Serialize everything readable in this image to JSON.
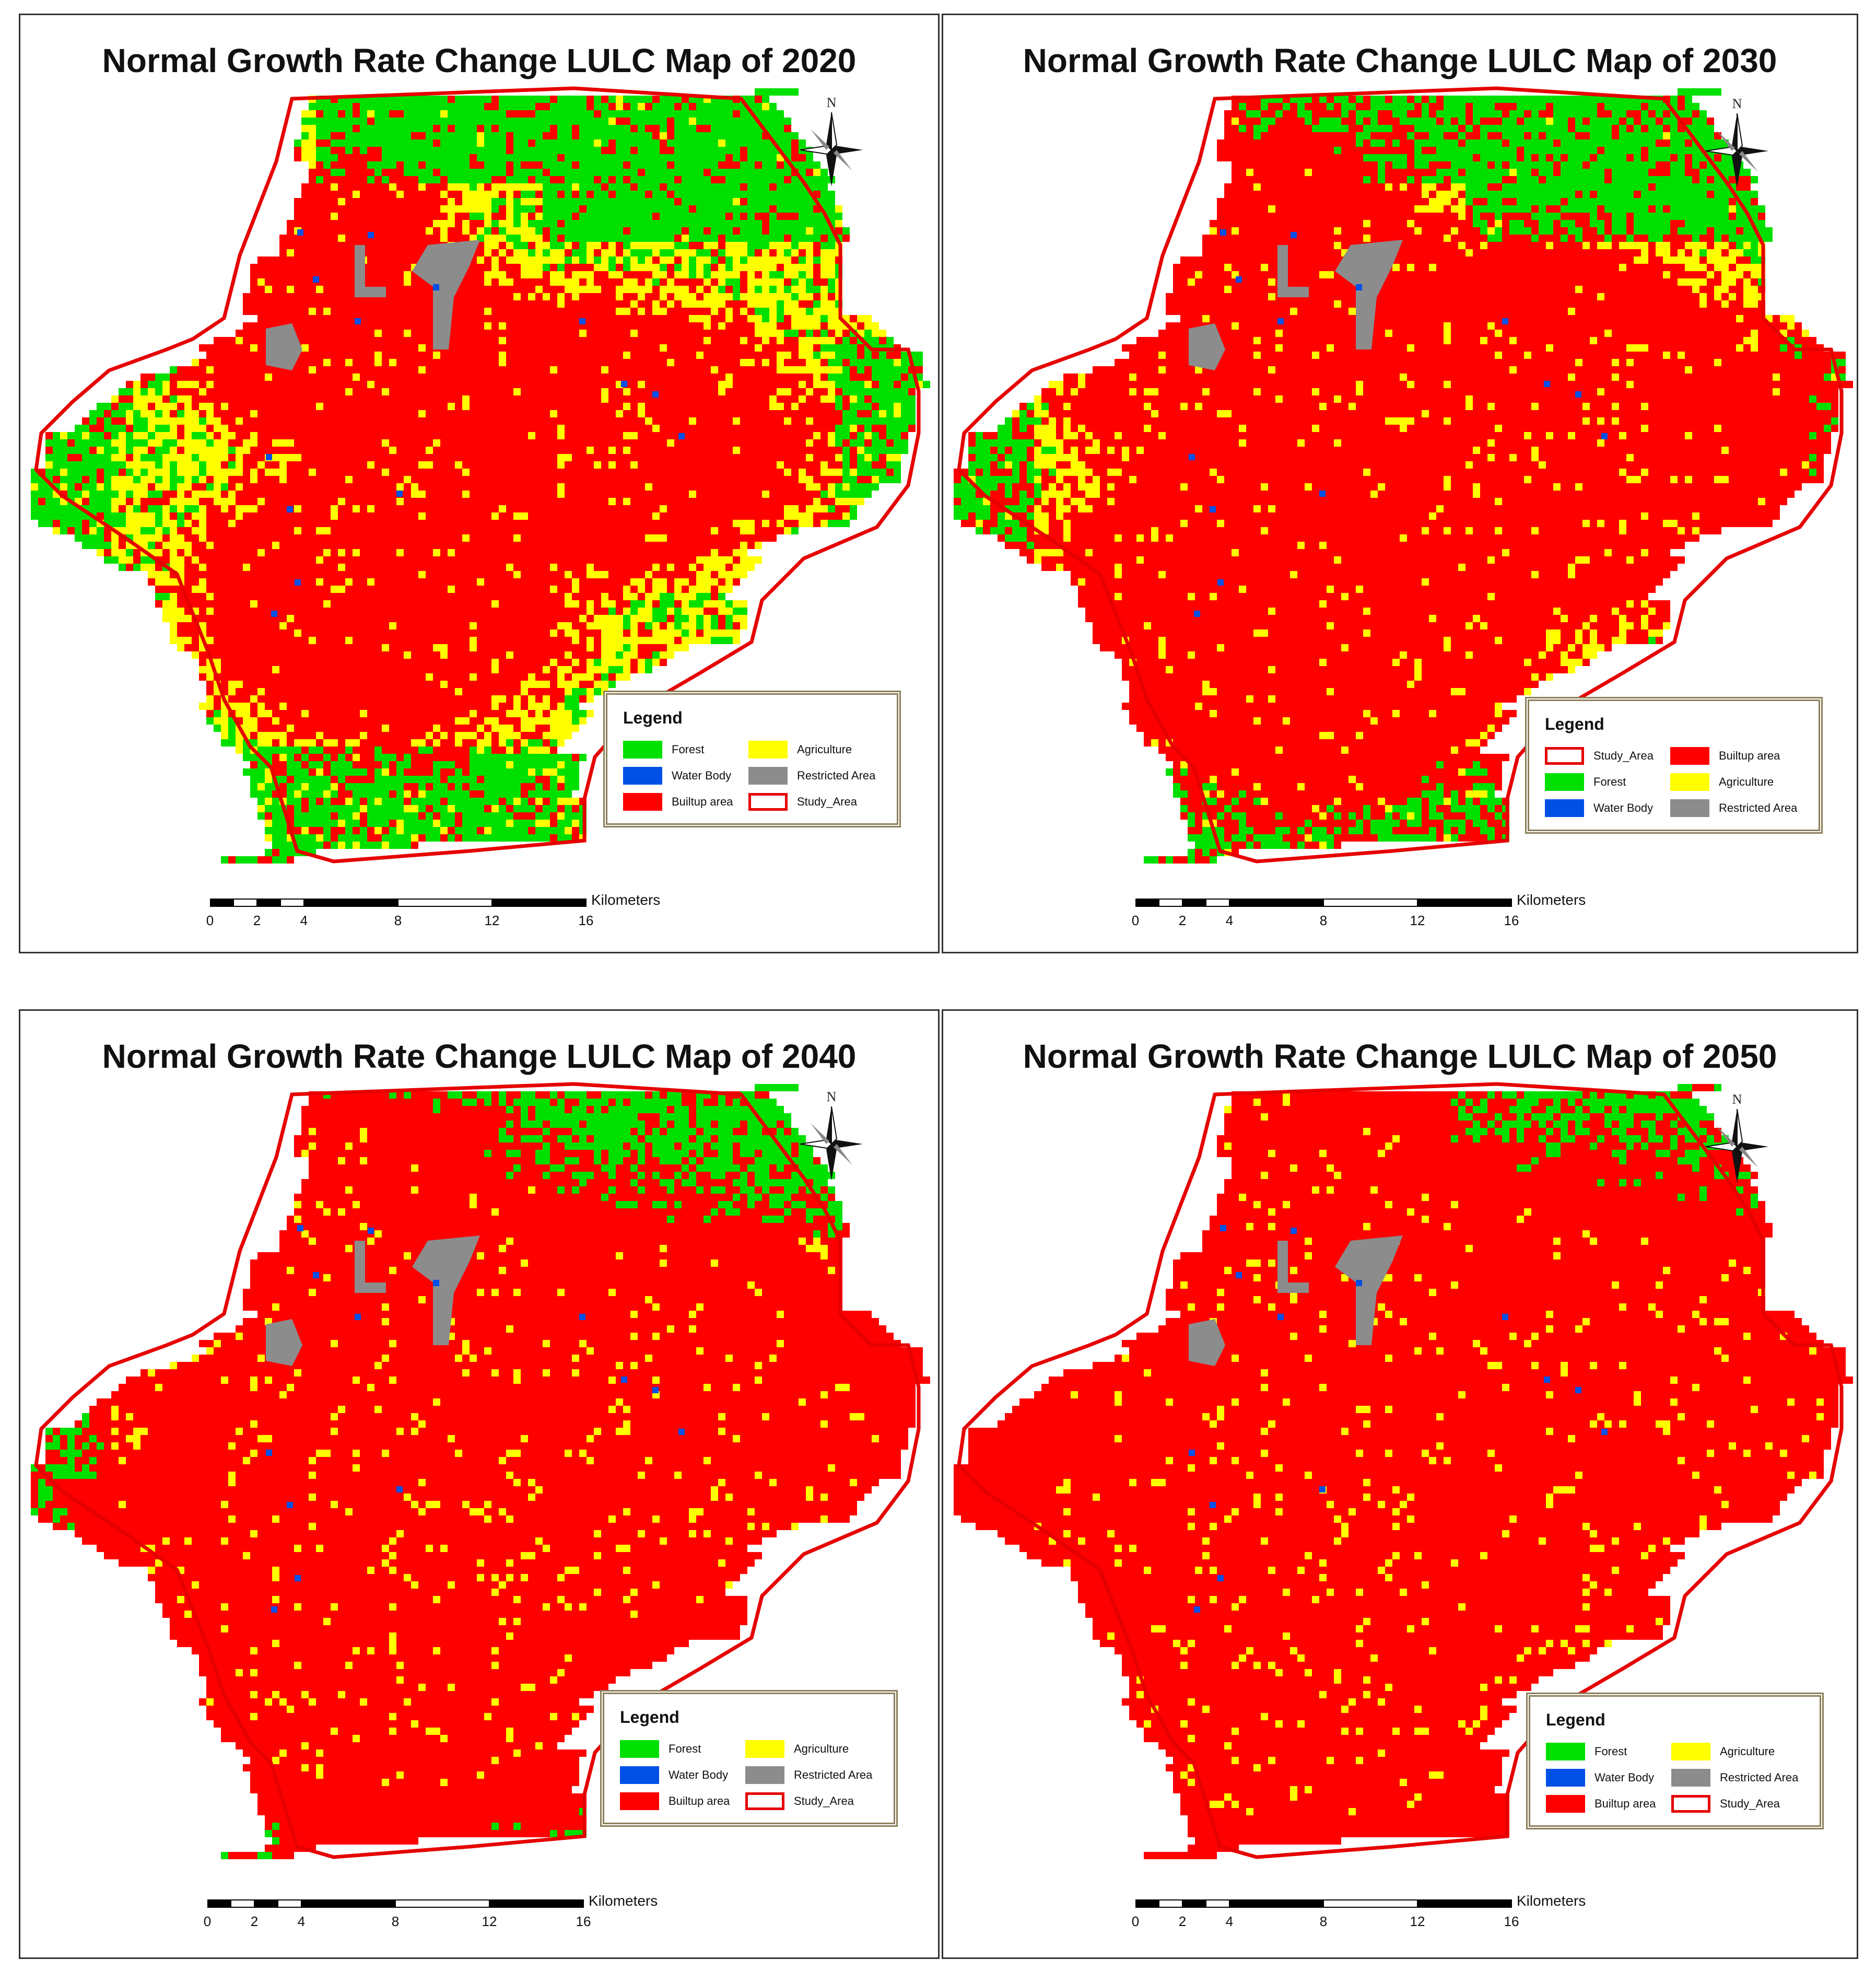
{
  "colors": {
    "forest": "#00e000",
    "agriculture": "#ffff00",
    "builtup": "#ff0000",
    "water": "#0050e6",
    "restricted": "#8c8c8c",
    "boundary": "#e60000"
  },
  "north_label": "N",
  "scale": {
    "ticks": [
      "0",
      "2",
      "4",
      "8",
      "12",
      "16"
    ],
    "unit": "Kilometers"
  },
  "maps": [
    {
      "title": "Normal Growth Rate Change LULC Map of 2020",
      "builtup_level": 0.25,
      "legend": {
        "title": "Legend",
        "items": [
          {
            "label": "Forest",
            "class": "forest"
          },
          {
            "label": "Agriculture",
            "class": "agriculture"
          },
          {
            "label": "Water Body",
            "class": "water"
          },
          {
            "label": "Restricted Area",
            "class": "restricted"
          },
          {
            "label": "Builtup area",
            "class": "builtup"
          },
          {
            "label": "Study_Area",
            "class": "study"
          }
        ]
      }
    },
    {
      "title": "Normal Growth Rate Change LULC Map of 2030",
      "builtup_level": 0.45,
      "legend": {
        "title": "Legend",
        "items": [
          {
            "label": "Study_Area",
            "class": "study"
          },
          {
            "label": "Builtup area",
            "class": "builtup"
          },
          {
            "label": "Forest",
            "class": "forest"
          },
          {
            "label": "Agriculture",
            "class": "agriculture"
          },
          {
            "label": "Water Body",
            "class": "water"
          },
          {
            "label": "Restricted Area",
            "class": "restricted"
          }
        ]
      }
    },
    {
      "title": "Normal Growth Rate Change LULC Map of 2040",
      "builtup_level": 0.62,
      "legend": {
        "title": "Legend",
        "items": [
          {
            "label": "Forest",
            "class": "forest"
          },
          {
            "label": "Agriculture",
            "class": "agriculture"
          },
          {
            "label": "Water Body",
            "class": "water"
          },
          {
            "label": "Restricted Area",
            "class": "restricted"
          },
          {
            "label": "Builtup area",
            "class": "builtup"
          },
          {
            "label": "Study_Area",
            "class": "study"
          }
        ]
      }
    },
    {
      "title": "Normal Growth Rate Change LULC Map of 2050",
      "builtup_level": 0.78,
      "legend": {
        "title": "Legend",
        "items": [
          {
            "label": "Forest",
            "class": "forest"
          },
          {
            "label": "Agriculture",
            "class": "agriculture"
          },
          {
            "label": "Water Body",
            "class": "water"
          },
          {
            "label": "Restricted Area",
            "class": "restricted"
          },
          {
            "label": "Builtup area",
            "class": "builtup"
          },
          {
            "label": "Study_Area",
            "class": "study"
          }
        ]
      }
    }
  ]
}
